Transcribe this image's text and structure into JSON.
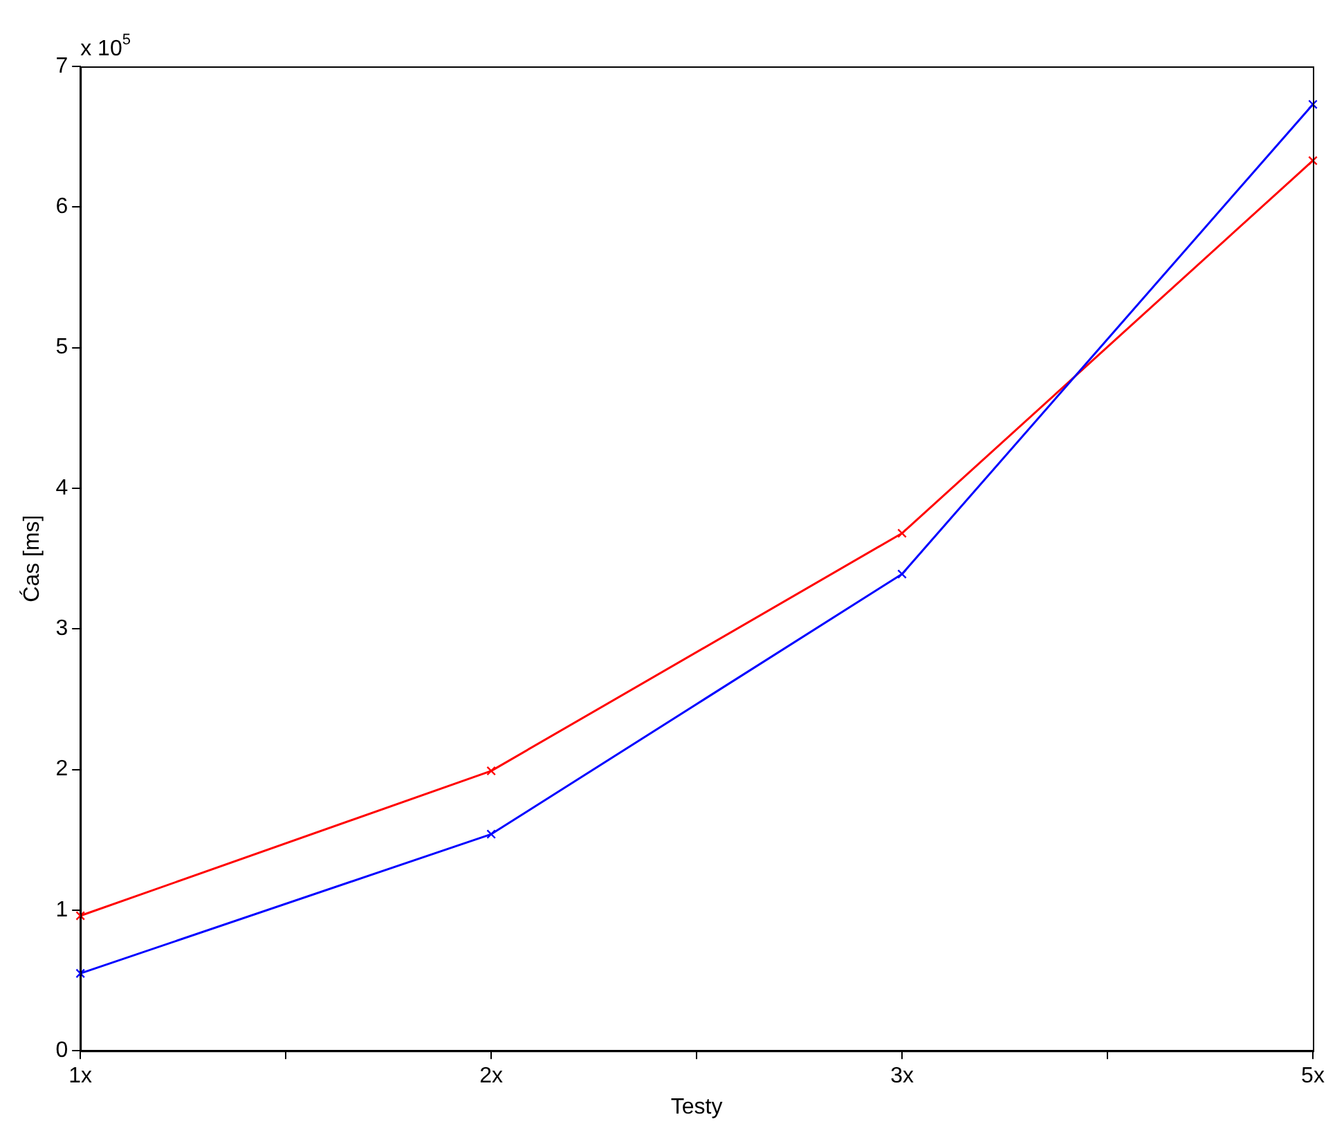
{
  "chart_data": {
    "type": "line",
    "xlabel": "Testy",
    "ylabel": "Ćas [ms]",
    "annotations": [
      "x 10$^{5}$"
    ],
    "categories": [
      "1x",
      null,
      "2x",
      null,
      "3x",
      null,
      "5x"
    ],
    "ylim": [
      0,
      7
    ],
    "yticks": [
      0,
      1,
      2,
      3,
      4,
      5,
      6,
      7
    ],
    "marker": "cross",
    "line_style": "solid",
    "series": [
      {
        "color": "#0000ff",
        "values": [
          0.55,
          null,
          1.54,
          null,
          3.39,
          null,
          6.73
        ]
      },
      {
        "color": "#ff0000",
        "values": [
          0.96,
          null,
          1.99,
          null,
          3.68,
          null,
          6.33
        ]
      }
    ]
  }
}
